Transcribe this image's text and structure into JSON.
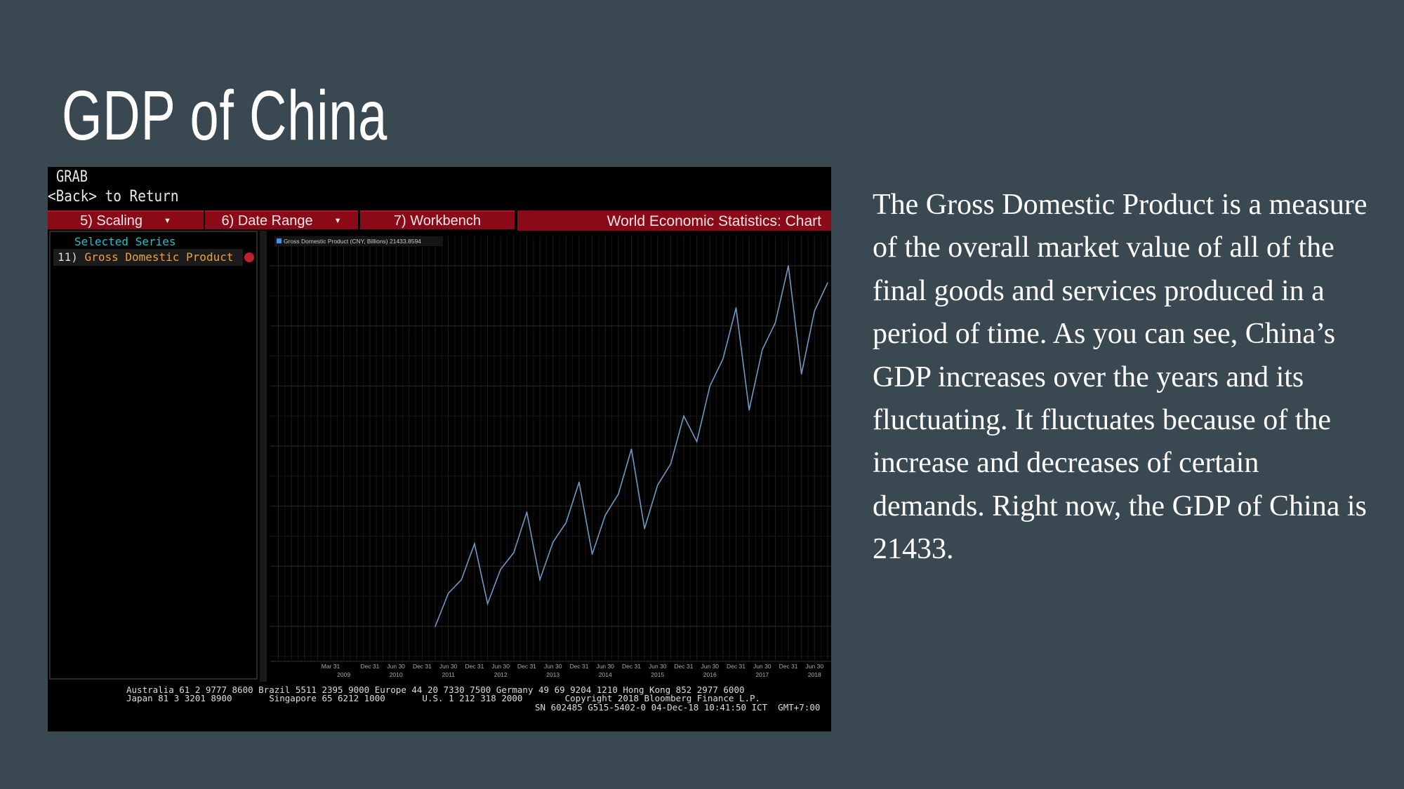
{
  "slide": {
    "title": "GDP of China",
    "body": "The Gross Domestic Product is a measure of the overall market value of all of the final goods and services produced in a period of time. As you can see, China’s GDP increases over the years and its fluctuating. It fluctuates because of the increase and decreases of certain demands. Right now, the GDP of China is 21433."
  },
  "terminal": {
    "grab": "GRAB",
    "back": "<Back> to Return",
    "toolbar": {
      "scaling": "5) Scaling",
      "date_range": "6) Date Range",
      "workbench": "7) Workbench",
      "screen_title": "World Economic Statistics: Chart"
    },
    "selected_series_header": "Selected Series",
    "series_item": {
      "num": "11)",
      "name": "Gross Domestic Product"
    },
    "colors": {
      "toolbar": "#8a0a18",
      "series_line": "#6d9ac6",
      "header": "#27c0c8",
      "series_name": "#f0a030"
    },
    "footer": {
      "line1": "Australia 61 2 9777 8600 Brazil 5511 2395 9000 Europe 44 20 7330 7500 Germany 49 69 9204 1210 Hong Kong 852 2977 6000",
      "line2": "Japan 81 3 3201 8900       Singapore 65 6212 1000       U.S. 1 212 318 2000        Copyright 2018 Bloomberg Finance L.P.",
      "line3": "SN 602485 G515-5402-0 04-Dec-18 10:41:50 ICT  GMT+7:00"
    }
  },
  "chart_data": {
    "type": "line",
    "legend": "Gross Domestic Product (CNY, Billions) 21433.8594",
    "last_value_label": "21433.8594",
    "ylim": [
      9000,
      23000
    ],
    "yticks": [
      "10000",
      "12000",
      "14000",
      "16000",
      "18000",
      "20000",
      "22000"
    ],
    "grid": true,
    "xticks": [
      {
        "date": "2009-03-31",
        "label": "Mar 31"
      },
      {
        "date": "2009-12-31",
        "label": "Dec 31"
      },
      {
        "date": "2010-06-30",
        "label": "Jun 30",
        "year": "2010"
      },
      {
        "date": "2010-12-31",
        "label": "Dec 31"
      },
      {
        "date": "2011-06-30",
        "label": "Jun 30",
        "year": "2011"
      },
      {
        "date": "2011-12-31",
        "label": "Dec 31"
      },
      {
        "date": "2012-06-30",
        "label": "Jun 30",
        "year": "2012"
      },
      {
        "date": "2012-12-31",
        "label": "Dec 31"
      },
      {
        "date": "2013-06-30",
        "label": "Jun 30",
        "year": "2013"
      },
      {
        "date": "2013-12-31",
        "label": "Dec 31"
      },
      {
        "date": "2014-06-30",
        "label": "Jun 30",
        "year": "2014"
      },
      {
        "date": "2014-12-31",
        "label": "Dec 31"
      },
      {
        "date": "2015-06-30",
        "label": "Jun 30",
        "year": "2015"
      },
      {
        "date": "2015-12-31",
        "label": "Dec 31"
      },
      {
        "date": "2016-06-30",
        "label": "Jun 30",
        "year": "2016"
      },
      {
        "date": "2016-12-31",
        "label": "Dec 31"
      },
      {
        "date": "2017-06-30",
        "label": "Jun 30",
        "year": "2017"
      },
      {
        "date": "2017-12-31",
        "label": "Dec 31"
      },
      {
        "date": "2018-06-30",
        "label": "Jun 30",
        "year": "2018"
      }
    ],
    "first_year_label": {
      "date": "2009-06-30",
      "year": "2009"
    },
    "series": [
      {
        "name": "Gross Domestic Product (CNY, Billions)",
        "x": [
          "2011-03-31",
          "2011-06-30",
          "2011-09-30",
          "2011-12-31",
          "2012-03-31",
          "2012-06-30",
          "2012-09-30",
          "2012-12-31",
          "2013-03-31",
          "2013-06-30",
          "2013-09-30",
          "2013-12-31",
          "2014-03-31",
          "2014-06-30",
          "2014-09-30",
          "2014-12-31",
          "2015-03-31",
          "2015-06-30",
          "2015-09-30",
          "2015-12-31",
          "2016-03-31",
          "2016-06-30",
          "2016-09-30",
          "2016-12-31",
          "2017-03-31",
          "2017-06-30",
          "2017-09-30",
          "2017-12-31",
          "2018-03-31",
          "2018-06-30",
          "2018-09-30"
        ],
        "y": [
          10000,
          11100,
          11550,
          12750,
          10750,
          11900,
          12450,
          13800,
          11550,
          12800,
          13450,
          14800,
          12400,
          13700,
          14400,
          15900,
          13250,
          14700,
          15400,
          17000,
          16150,
          18000,
          18900,
          20600,
          17200,
          19200,
          20100,
          22000,
          18400,
          20500,
          21433.8594
        ]
      }
    ]
  }
}
